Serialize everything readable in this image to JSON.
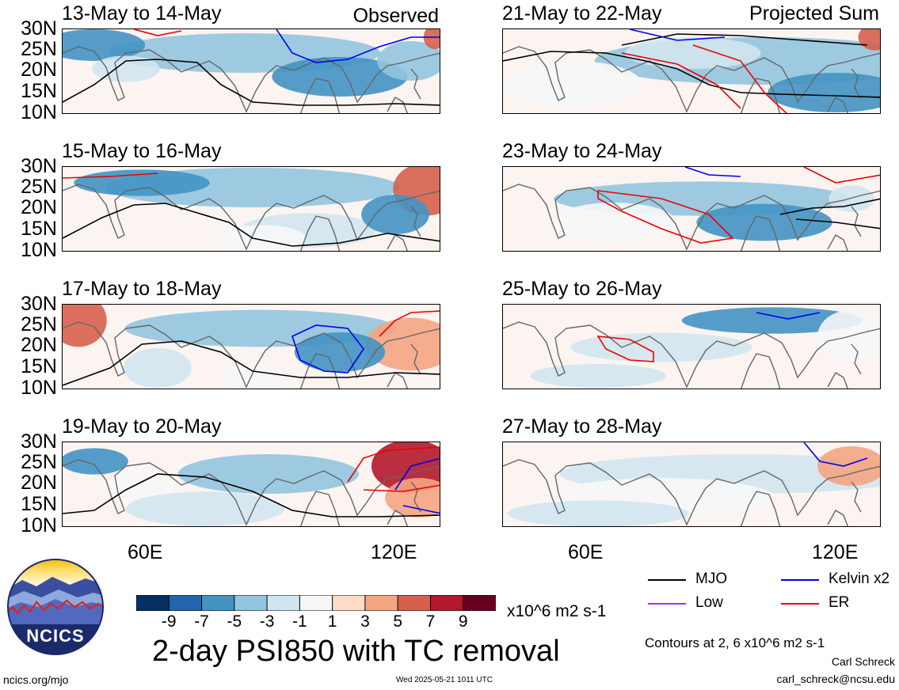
{
  "chart_data": {
    "type": "map-panels",
    "variable_title": "2-day PSI850 with TC removal",
    "colorbar": {
      "units": "x10^6 m2 s-1",
      "ticks": [
        "-9",
        "-7",
        "-5",
        "-3",
        "-1",
        "1",
        "3",
        "5",
        "7",
        "9"
      ],
      "colors": [
        "#053061",
        "#2166ac",
        "#4393c3",
        "#92c5de",
        "#d1e5f0",
        "#f7f7f7",
        "#fddbc7",
        "#f4a582",
        "#d6604d",
        "#b2182b",
        "#67001f"
      ]
    },
    "lat_labels": [
      "30N",
      "25N",
      "20N",
      "15N",
      "10N"
    ],
    "lon_labels": [
      "60E",
      "120E"
    ],
    "panel_tags": {
      "observed": "Observed",
      "projected": "Projected Sum"
    },
    "panels": [
      {
        "title": "13-May to 14-May",
        "column": "Observed"
      },
      {
        "title": "15-May to 16-May",
        "column": "Observed"
      },
      {
        "title": "17-May to 18-May",
        "column": "Observed"
      },
      {
        "title": "19-May to 20-May",
        "column": "Observed"
      },
      {
        "title": "21-May to 22-May",
        "column": "Projected Sum"
      },
      {
        "title": "23-May to 24-May",
        "column": "Projected Sum"
      },
      {
        "title": "25-May to 26-May",
        "column": "Projected Sum"
      },
      {
        "title": "27-May to 28-May",
        "column": "Projected Sum"
      }
    ],
    "legend": [
      {
        "label": "MJO",
        "color": "#000000"
      },
      {
        "label": "Kelvin x2",
        "color": "#0000ee"
      },
      {
        "label": "Low",
        "color": "#9933ff"
      },
      {
        "label": "ER",
        "color": "#ee0000"
      }
    ],
    "contour_note": "Contours at 2, 6 x10^6 m2 s-1"
  },
  "footer": {
    "logo_text": "NCICS",
    "url": "ncics.org/mjo",
    "timestamp": "Wed 2025-05-21 1011 UTC",
    "author": "Carl Schreck",
    "email": "carl_schreck@ncsu.edu"
  }
}
